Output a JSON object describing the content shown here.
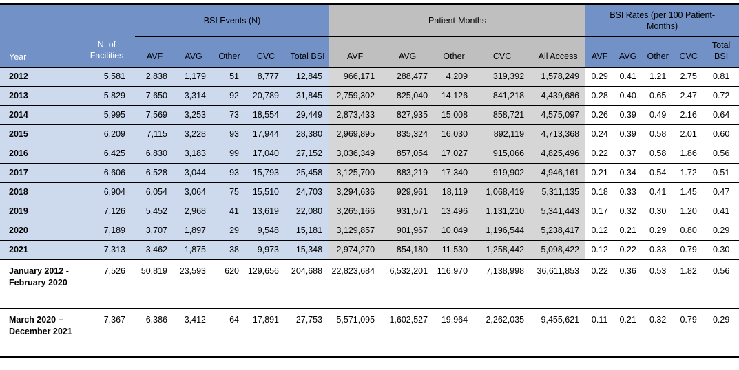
{
  "colors": {
    "header_blue": "#7191C7",
    "header_grey": "#BFBFBF",
    "body_blue": "#CDD9EC",
    "body_grey": "#D6D6D6",
    "summary_row_bg": "#FFFFFF",
    "border": "#000000",
    "header_left_text": "#FFFFFF"
  },
  "header": {
    "year": "Year",
    "facilities": "N. of Facilities",
    "groups": {
      "events": "BSI Events (N)",
      "patient_months": "Patient-Months",
      "rates": "BSI Rates (per 100 Patient-Months)"
    },
    "events_cols": [
      "AVF",
      "AVG",
      "Other",
      "CVC",
      "Total BSI"
    ],
    "pm_cols": [
      "AVF",
      "AVG",
      "Other",
      "CVC",
      "All Access"
    ],
    "rates_cols": [
      "AVF",
      "AVG",
      "Other",
      "CVC",
      "Total BSI"
    ]
  },
  "rows": [
    {
      "label": "2012",
      "summary": false,
      "values": [
        "5,581",
        "2,838",
        "1,179",
        "51",
        "8,777",
        "12,845",
        "966,171",
        "288,477",
        "4,209",
        "319,392",
        "1,578,249",
        "0.29",
        "0.41",
        "1.21",
        "2.75",
        "0.81"
      ]
    },
    {
      "label": "2013",
      "summary": false,
      "values": [
        "5,829",
        "7,650",
        "3,314",
        "92",
        "20,789",
        "31,845",
        "2,759,302",
        "825,040",
        "14,126",
        "841,218",
        "4,439,686",
        "0.28",
        "0.40",
        "0.65",
        "2.47",
        "0.72"
      ]
    },
    {
      "label": "2014",
      "summary": false,
      "values": [
        "5,995",
        "7,569",
        "3,253",
        "73",
        "18,554",
        "29,449",
        "2,873,433",
        "827,935",
        "15,008",
        "858,721",
        "4,575,097",
        "0.26",
        "0.39",
        "0.49",
        "2.16",
        "0.64"
      ]
    },
    {
      "label": "2015",
      "summary": false,
      "values": [
        "6,209",
        "7,115",
        "3,228",
        "93",
        "17,944",
        "28,380",
        "2,969,895",
        "835,324",
        "16,030",
        "892,119",
        "4,713,368",
        "0.24",
        "0.39",
        "0.58",
        "2.01",
        "0.60"
      ]
    },
    {
      "label": "2016",
      "summary": false,
      "values": [
        "6,425",
        "6,830",
        "3,183",
        "99",
        "17,040",
        "27,152",
        "3,036,349",
        "857,054",
        "17,027",
        "915,066",
        "4,825,496",
        "0.22",
        "0.37",
        "0.58",
        "1.86",
        "0.56"
      ]
    },
    {
      "label": "2017",
      "summary": false,
      "values": [
        "6,606",
        "6,528",
        "3,044",
        "93",
        "15,793",
        "25,458",
        "3,125,700",
        "883,219",
        "17,340",
        "919,902",
        "4,946,161",
        "0.21",
        "0.34",
        "0.54",
        "1.72",
        "0.51"
      ]
    },
    {
      "label": "2018",
      "summary": false,
      "values": [
        "6,904",
        "6,054",
        "3,064",
        "75",
        "15,510",
        "24,703",
        "3,294,636",
        "929,961",
        "18,119",
        "1,068,419",
        "5,311,135",
        "0.18",
        "0.33",
        "0.41",
        "1.45",
        "0.47"
      ]
    },
    {
      "label": "2019",
      "summary": false,
      "values": [
        "7,126",
        "5,452",
        "2,968",
        "41",
        "13,619",
        "22,080",
        "3,265,166",
        "931,571",
        "13,496",
        "1,131,210",
        "5,341,443",
        "0.17",
        "0.32",
        "0.30",
        "1.20",
        "0.41"
      ]
    },
    {
      "label": "2020",
      "summary": false,
      "values": [
        "7,189",
        "3,707",
        "1,897",
        "29",
        "9,548",
        "15,181",
        "3,129,857",
        "901,967",
        "10,049",
        "1,196,544",
        "5,238,417",
        "0.12",
        "0.21",
        "0.29",
        "0.80",
        "0.29"
      ]
    },
    {
      "label": "2021",
      "summary": false,
      "values": [
        "7,313",
        "3,462",
        "1,875",
        "38",
        "9,973",
        "15,348",
        "2,974,270",
        "854,180",
        "11,530",
        "1,258,442",
        "5,098,422",
        "0.12",
        "0.22",
        "0.33",
        "0.79",
        "0.30"
      ]
    },
    {
      "label": "January 2012 -February 2020",
      "summary": true,
      "values": [
        "7,526",
        "50,819",
        "23,593",
        "620",
        "129,656",
        "204,688",
        "22,823,684",
        "6,532,201",
        "116,970",
        "7,138,998",
        "36,611,853",
        "0.22",
        "0.36",
        "0.53",
        "1.82",
        "0.56"
      ]
    },
    {
      "label": "March 2020 – December 2021",
      "summary": true,
      "values": [
        "7,367",
        "6,386",
        "3,412",
        "64",
        "17,891",
        "27,753",
        "5,571,095",
        "1,602,527",
        "19,964",
        "2,262,035",
        "9,455,621",
        "0.11",
        "0.21",
        "0.32",
        "0.79",
        "0.29"
      ]
    }
  ]
}
